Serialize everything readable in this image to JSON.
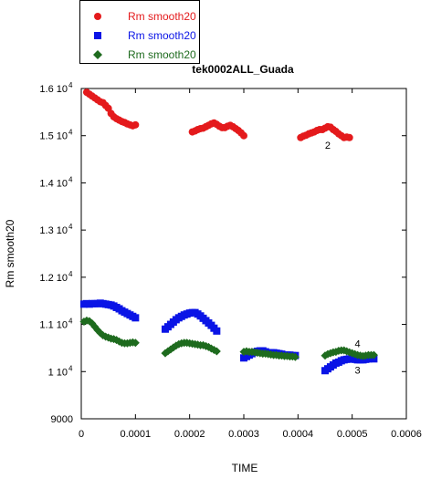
{
  "chart_data": {
    "type": "scatter",
    "title": "tek0002ALL_Guada",
    "xlabel": "TIME",
    "ylabel": "Rm smooth20",
    "xlim": [
      0,
      0.0006
    ],
    "ylim": [
      9000,
      16000
    ],
    "xticks": [
      "0",
      "0.0001",
      "0.0002",
      "0.0003",
      "0.0004",
      "0.0005",
      "0.0006"
    ],
    "yticks": [
      {
        "mant": "9000",
        "exp": ""
      },
      {
        "mant": "1 10",
        "exp": "4"
      },
      {
        "mant": "1.1 10",
        "exp": "4"
      },
      {
        "mant": "1.2 10",
        "exp": "4"
      },
      {
        "mant": "1.3 10",
        "exp": "4"
      },
      {
        "mant": "1.4 10",
        "exp": "4"
      },
      {
        "mant": "1.5 10",
        "exp": "4"
      },
      {
        "mant": "1.6 10",
        "exp": "4"
      }
    ],
    "grid": false,
    "legend_position": "top-left outside",
    "annotations": [
      {
        "text": "2",
        "x": 0.000455,
        "y": 14800
      },
      {
        "text": "4",
        "x": 0.00051,
        "y": 10600
      },
      {
        "text": "3",
        "x": 0.00051,
        "y": 10030
      }
    ],
    "series": [
      {
        "name": "Rm smooth20",
        "color": "#e41a1c",
        "marker": "circle",
        "segments": [
          [
            [
              1e-05,
              15920
            ],
            [
              1.5e-05,
              15880
            ],
            [
              2e-05,
              15840
            ],
            [
              2.5e-05,
              15800
            ],
            [
              3e-05,
              15760
            ],
            [
              3.5e-05,
              15720
            ],
            [
              4e-05,
              15700
            ],
            [
              4.5e-05,
              15640
            ],
            [
              5e-05,
              15580
            ],
            [
              5.5e-05,
              15470
            ],
            [
              6e-05,
              15400
            ],
            [
              6.5e-05,
              15360
            ],
            [
              7e-05,
              15330
            ],
            [
              7.5e-05,
              15300
            ],
            [
              8e-05,
              15280
            ],
            [
              8.5e-05,
              15250
            ],
            [
              9e-05,
              15230
            ],
            [
              9.5e-05,
              15210
            ],
            [
              0.0001,
              15230
            ]
          ],
          [
            [
              0.000205,
              15080
            ],
            [
              0.00021,
              15100
            ],
            [
              0.000215,
              15130
            ],
            [
              0.00022,
              15150
            ],
            [
              0.000225,
              15160
            ],
            [
              0.00023,
              15190
            ],
            [
              0.000235,
              15220
            ],
            [
              0.00024,
              15250
            ],
            [
              0.000245,
              15270
            ],
            [
              0.00025,
              15240
            ],
            [
              0.000255,
              15200
            ],
            [
              0.00026,
              15170
            ],
            [
              0.000265,
              15170
            ],
            [
              0.00027,
              15200
            ],
            [
              0.000275,
              15220
            ],
            [
              0.00028,
              15190
            ],
            [
              0.000285,
              15150
            ],
            [
              0.00029,
              15110
            ],
            [
              0.000295,
              15060
            ],
            [
              0.0003,
              15000
            ]
          ],
          [
            [
              0.000405,
              14960
            ],
            [
              0.00041,
              14990
            ],
            [
              0.000415,
              15010
            ],
            [
              0.00042,
              15040
            ],
            [
              0.000425,
              15060
            ],
            [
              0.00043,
              15080
            ],
            [
              0.000435,
              15110
            ],
            [
              0.00044,
              15130
            ],
            [
              0.000445,
              15130
            ],
            [
              0.00045,
              15160
            ],
            [
              0.000455,
              15190
            ],
            [
              0.00046,
              15180
            ],
            [
              0.000465,
              15130
            ],
            [
              0.00047,
              15090
            ],
            [
              0.000475,
              15040
            ],
            [
              0.00048,
              15000
            ],
            [
              0.000485,
              14960
            ],
            [
              0.00049,
              14970
            ],
            [
              0.000495,
              14960
            ]
          ]
        ]
      },
      {
        "name": "Rm smooth20",
        "color": "#0a14e6",
        "marker": "square",
        "segments": [
          [
            [
              5e-06,
              11430
            ],
            [
              1e-05,
              11440
            ],
            [
              1.5e-05,
              11430
            ],
            [
              2e-05,
              11440
            ],
            [
              2.5e-05,
              11440
            ],
            [
              3e-05,
              11440
            ],
            [
              3.5e-05,
              11450
            ],
            [
              4e-05,
              11440
            ],
            [
              4.5e-05,
              11430
            ],
            [
              5e-05,
              11420
            ],
            [
              5.5e-05,
              11410
            ],
            [
              6e-05,
              11390
            ],
            [
              6.5e-05,
              11360
            ],
            [
              7e-05,
              11330
            ],
            [
              7.5e-05,
              11290
            ],
            [
              8e-05,
              11260
            ],
            [
              8.5e-05,
              11230
            ],
            [
              9e-05,
              11200
            ],
            [
              9.5e-05,
              11170
            ],
            [
              0.0001,
              11140
            ]
          ],
          [
            [
              0.000155,
              10900
            ],
            [
              0.00016,
              10950
            ],
            [
              0.000165,
              11000
            ],
            [
              0.00017,
              11050
            ],
            [
              0.000175,
              11100
            ],
            [
              0.00018,
              11140
            ],
            [
              0.000185,
              11170
            ],
            [
              0.00019,
              11200
            ],
            [
              0.000195,
              11220
            ],
            [
              0.0002,
              11240
            ],
            [
              0.000205,
              11250
            ],
            [
              0.00021,
              11250
            ],
            [
              0.000215,
              11220
            ],
            [
              0.00022,
              11180
            ],
            [
              0.000225,
              11130
            ],
            [
              0.00023,
              11080
            ],
            [
              0.000235,
              11030
            ],
            [
              0.00024,
              10980
            ],
            [
              0.000245,
              10920
            ],
            [
              0.00025,
              10860
            ]
          ],
          [
            [
              0.0003,
              10290
            ],
            [
              0.000305,
              10320
            ],
            [
              0.00031,
              10350
            ],
            [
              0.000315,
              10380
            ],
            [
              0.00032,
              10410
            ],
            [
              0.000325,
              10430
            ],
            [
              0.00033,
              10440
            ],
            [
              0.000335,
              10440
            ],
            [
              0.00034,
              10420
            ],
            [
              0.000345,
              10400
            ],
            [
              0.00035,
              10400
            ],
            [
              0.000355,
              10400
            ],
            [
              0.00036,
              10390
            ],
            [
              0.000365,
              10380
            ],
            [
              0.00037,
              10370
            ],
            [
              0.000375,
              10350
            ],
            [
              0.00038,
              10350
            ],
            [
              0.000385,
              10350
            ],
            [
              0.00039,
              10340
            ],
            [
              0.000395,
              10340
            ]
          ],
          [
            [
              0.00045,
              10020
            ],
            [
              0.000455,
              10060
            ],
            [
              0.00046,
              10100
            ],
            [
              0.000465,
              10140
            ],
            [
              0.00047,
              10180
            ],
            [
              0.000475,
              10200
            ],
            [
              0.00048,
              10230
            ],
            [
              0.000485,
              10250
            ],
            [
              0.00049,
              10260
            ],
            [
              0.000495,
              10270
            ],
            [
              0.0005,
              10270
            ],
            [
              0.000505,
              10260
            ],
            [
              0.00051,
              10250
            ],
            [
              0.000515,
              10250
            ],
            [
              0.00052,
              10250
            ],
            [
              0.000525,
              10260
            ],
            [
              0.00053,
              10270
            ],
            [
              0.000535,
              10280
            ],
            [
              0.00054,
              10270
            ]
          ]
        ]
      },
      {
        "name": "Rm smooth20",
        "color": "#1e6b1e",
        "marker": "diamond",
        "segments": [
          [
            [
              5e-06,
              11060
            ],
            [
              1e-05,
              11080
            ],
            [
              1.5e-05,
              11070
            ],
            [
              2e-05,
              11020
            ],
            [
              2.5e-05,
              10950
            ],
            [
              3e-05,
              10880
            ],
            [
              3.5e-05,
              10820
            ],
            [
              4e-05,
              10770
            ],
            [
              4.5e-05,
              10740
            ],
            [
              5e-05,
              10720
            ],
            [
              5.5e-05,
              10700
            ],
            [
              6e-05,
              10690
            ],
            [
              6.5e-05,
              10670
            ],
            [
              7e-05,
              10640
            ],
            [
              7.5e-05,
              10610
            ],
            [
              8e-05,
              10600
            ],
            [
              8.5e-05,
              10600
            ],
            [
              9e-05,
              10610
            ],
            [
              9.5e-05,
              10620
            ],
            [
              0.0001,
              10610
            ]
          ],
          [
            [
              0.000155,
              10390
            ],
            [
              0.00016,
              10430
            ],
            [
              0.000165,
              10470
            ],
            [
              0.00017,
              10510
            ],
            [
              0.000175,
              10550
            ],
            [
              0.00018,
              10580
            ],
            [
              0.000185,
              10600
            ],
            [
              0.00019,
              10610
            ],
            [
              0.000195,
              10610
            ],
            [
              0.0002,
              10600
            ],
            [
              0.000205,
              10590
            ],
            [
              0.00021,
              10580
            ],
            [
              0.000215,
              10570
            ],
            [
              0.00022,
              10560
            ],
            [
              0.000225,
              10560
            ],
            [
              0.00023,
              10540
            ],
            [
              0.000235,
              10520
            ],
            [
              0.00024,
              10490
            ],
            [
              0.000245,
              10460
            ],
            [
              0.00025,
              10430
            ]
          ],
          [
            [
              0.0003,
              10420
            ],
            [
              0.000305,
              10430
            ],
            [
              0.00031,
              10420
            ],
            [
              0.000315,
              10420
            ],
            [
              0.00032,
              10410
            ],
            [
              0.000325,
              10400
            ],
            [
              0.00033,
              10390
            ],
            [
              0.000335,
              10380
            ],
            [
              0.00034,
              10380
            ],
            [
              0.000345,
              10370
            ],
            [
              0.00035,
              10360
            ],
            [
              0.000355,
              10350
            ],
            [
              0.00036,
              10350
            ],
            [
              0.000365,
              10340
            ],
            [
              0.00037,
              10340
            ],
            [
              0.000375,
              10330
            ],
            [
              0.00038,
              10330
            ],
            [
              0.000385,
              10320
            ],
            [
              0.00039,
              10320
            ],
            [
              0.000395,
              10310
            ]
          ],
          [
            [
              0.00045,
              10340
            ],
            [
              0.000455,
              10370
            ],
            [
              0.00046,
              10390
            ],
            [
              0.000465,
              10410
            ],
            [
              0.00047,
              10420
            ],
            [
              0.000475,
              10440
            ],
            [
              0.00048,
              10450
            ],
            [
              0.000485,
              10450
            ],
            [
              0.00049,
              10430
            ],
            [
              0.000495,
              10410
            ],
            [
              0.0005,
              10390
            ],
            [
              0.000505,
              10370
            ],
            [
              0.00051,
              10350
            ],
            [
              0.000515,
              10340
            ],
            [
              0.00052,
              10330
            ],
            [
              0.000525,
              10340
            ],
            [
              0.00053,
              10350
            ],
            [
              0.000535,
              10350
            ],
            [
              0.00054,
              10350
            ]
          ]
        ]
      }
    ]
  }
}
